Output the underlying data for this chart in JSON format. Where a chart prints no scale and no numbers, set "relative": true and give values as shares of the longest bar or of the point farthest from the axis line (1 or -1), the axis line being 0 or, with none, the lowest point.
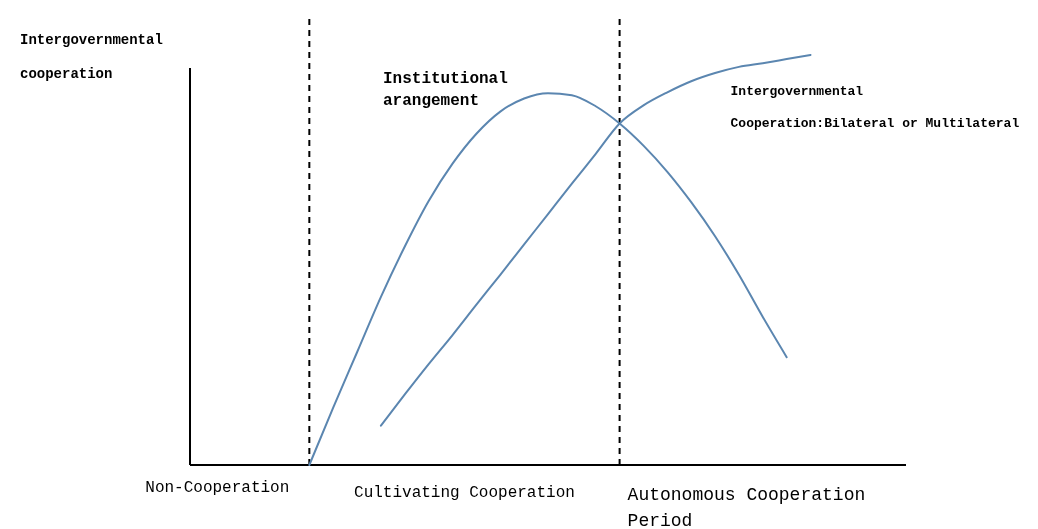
{
  "chart_data": {
    "type": "line",
    "relative": true,
    "ylabel": "Intergovernmental cooperation",
    "categories": [
      null,
      null,
      null,
      null,
      null,
      null,
      null,
      null,
      null,
      null,
      null,
      null,
      null,
      null,
      null,
      null,
      null,
      null,
      null,
      null,
      null,
      null,
      null,
      null,
      null,
      null,
      null,
      null,
      null,
      null,
      null
    ],
    "series": [
      {
        "name": "Institutional arangement",
        "color": "#5b86b0",
        "values": [
          null,
          null,
          null,
          null,
          null,
          0,
          0.14,
          0.275,
          0.41,
          0.533,
          0.644,
          0.735,
          0.808,
          0.862,
          0.894,
          0.907,
          0.902,
          0.875,
          0.833,
          0.779,
          0.715,
          0.641,
          0.558,
          0.464,
          0.361,
          0.263,
          null,
          null,
          null,
          null,
          null
        ]
      },
      {
        "name": "Intergovernmental Cooperation:Bilateral or Multilateral",
        "color": "#5b86b0",
        "values": [
          null,
          null,
          null,
          null,
          null,
          null,
          null,
          null,
          0.096,
          0.172,
          0.246,
          0.317,
          0.391,
          0.464,
          0.538,
          0.612,
          0.686,
          0.759,
          0.833,
          0.877,
          0.909,
          0.936,
          0.956,
          0.971,
          0.98,
          0.99,
          1,
          null,
          null,
          null,
          null
        ]
      }
    ],
    "annotations": [
      "Non-Cooperation",
      "Cultivating Cooperation",
      "Autonomous Cooperation Period"
    ],
    "grid": false,
    "marker": "none",
    "line_style": "solid"
  }
}
